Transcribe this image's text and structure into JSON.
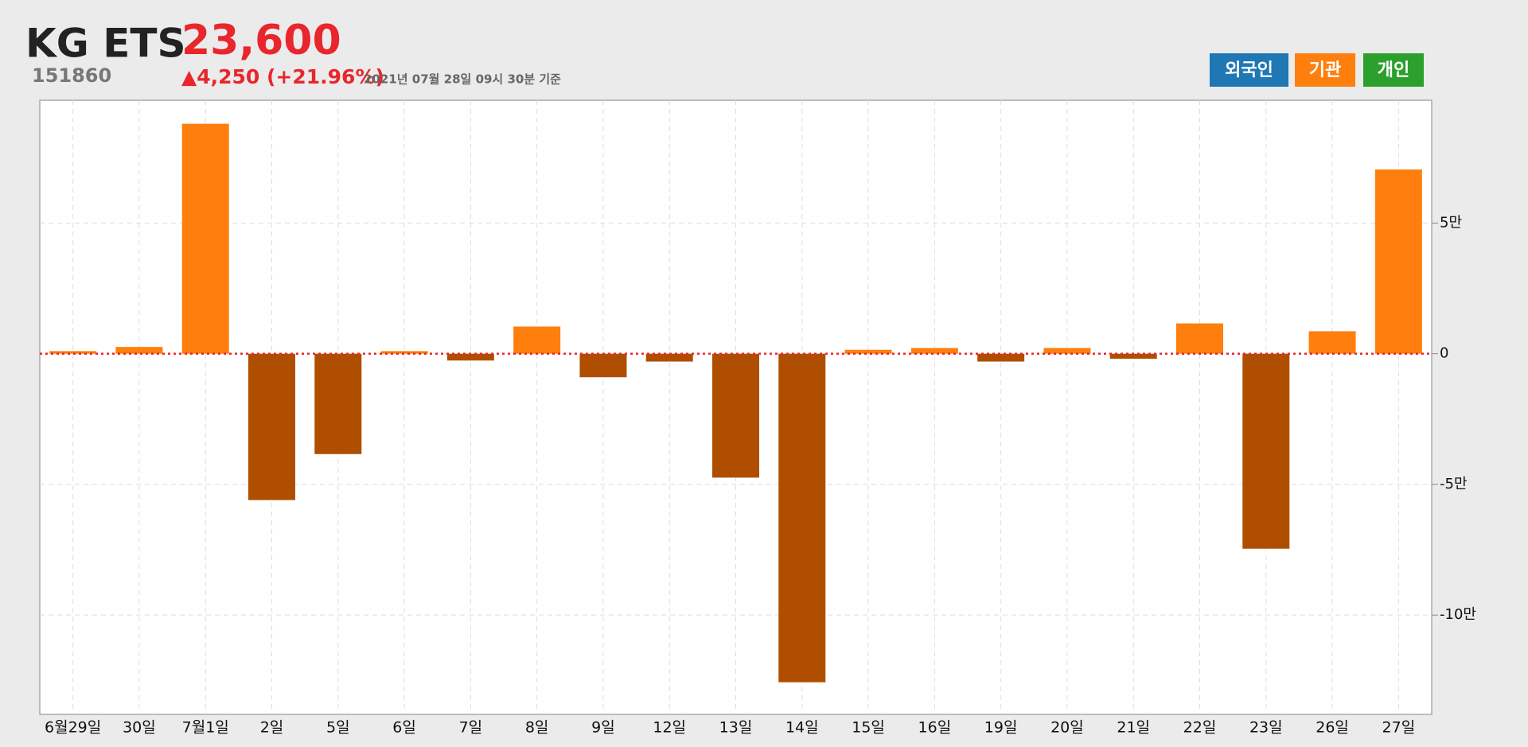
{
  "chart_data": {
    "type": "bar",
    "title": "KG ETS",
    "code": "151860",
    "price": "23,600",
    "change": "▲4,250 (+21.96%)",
    "timestamp": "2021년 07월 28일 09시 30분 기준",
    "legend": [
      {
        "name": "외국인",
        "color": "#1f77b4"
      },
      {
        "name": "기관",
        "color": "#ff7f0e"
      },
      {
        "name": "개인",
        "color": "#2ca02c"
      }
    ],
    "categories": [
      "6월29일",
      "30일",
      "7월1일",
      "2일",
      "5일",
      "6일",
      "7일",
      "8일",
      "9일",
      "12일",
      "13일",
      "14일",
      "15일",
      "16일",
      "19일",
      "20일",
      "21일",
      "22일",
      "23일",
      "26일",
      "27일"
    ],
    "series": [
      {
        "name": "기관",
        "color": "#ff7f0e",
        "negative_color": "#b04e00",
        "values": [
          1000,
          2600,
          88000,
          -56000,
          -38400,
          1000,
          -2600,
          10400,
          -9000,
          -3000,
          -47400,
          -125700,
          1500,
          2200,
          -3000,
          2200,
          -1900,
          11600,
          -74600,
          8600,
          70500
        ]
      }
    ],
    "ylim": [
      -138000,
      97000
    ],
    "yticks": [
      {
        "value": -100000,
        "label": "-10만"
      },
      {
        "value": -50000,
        "label": "-5만"
      },
      0,
      {
        "value": 50000,
        "label": "5만"
      }
    ],
    "grid": true,
    "zero_line_color": "#e8262c"
  }
}
